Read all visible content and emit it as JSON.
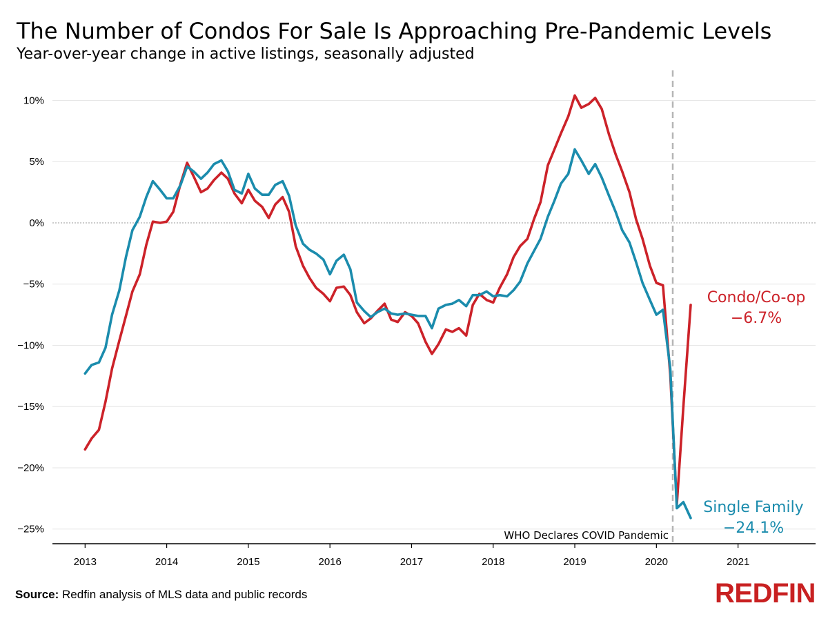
{
  "title": "The Number of Condos For Sale Is Approaching Pre-Pandemic Levels",
  "subtitle": "Year-over-year change in active listings, seasonally adjusted",
  "source_label": "Source:",
  "source_text": " Redfin analysis of MLS data and public records",
  "logo_text": "REDFIN",
  "colors": {
    "condo": "#cc2229",
    "single_family": "#1b8cad",
    "grid": "#e6e6e6",
    "annotation": "#b5b5b5"
  },
  "chart_data": {
    "type": "line",
    "xlim": [
      2012.6,
      2021.95
    ],
    "ylim": [
      -26.2,
      12.0
    ],
    "yticks": [
      10,
      5,
      0,
      -5,
      -10,
      -15,
      -20,
      -25
    ],
    "ytick_labels": [
      "10%",
      "5%",
      "0%",
      "−5%",
      "−10%",
      "−15%",
      "−20%",
      "−25%"
    ],
    "xticks": [
      2013,
      2014,
      2015,
      2016,
      2017,
      2018,
      2019,
      2020,
      2021
    ],
    "xtick_labels": [
      "2013",
      "2014",
      "2015",
      "2016",
      "2017",
      "2018",
      "2019",
      "2020",
      "2021"
    ],
    "grid": true,
    "annotation": {
      "x": 2020.2,
      "label": "WHO Declares COVID Pandemic"
    },
    "series": [
      {
        "name": "Condo/Co-op",
        "end_label": "−6.7%",
        "color": "#cc2229",
        "points": [
          [
            2013.0,
            -18.5
          ],
          [
            2013.08,
            -17.6
          ],
          [
            2013.17,
            -16.9
          ],
          [
            2013.25,
            -14.6
          ],
          [
            2013.33,
            -11.9
          ],
          [
            2013.42,
            -9.6
          ],
          [
            2013.5,
            -7.6
          ],
          [
            2013.58,
            -5.6
          ],
          [
            2013.67,
            -4.2
          ],
          [
            2013.75,
            -1.8
          ],
          [
            2013.83,
            0.1
          ],
          [
            2013.92,
            0.0
          ],
          [
            2014.0,
            0.1
          ],
          [
            2014.08,
            0.9
          ],
          [
            2014.17,
            3.2
          ],
          [
            2014.25,
            4.9
          ],
          [
            2014.33,
            3.8
          ],
          [
            2014.42,
            2.5
          ],
          [
            2014.5,
            2.8
          ],
          [
            2014.58,
            3.5
          ],
          [
            2014.67,
            4.1
          ],
          [
            2014.75,
            3.6
          ],
          [
            2014.83,
            2.4
          ],
          [
            2014.92,
            1.6
          ],
          [
            2015.0,
            2.7
          ],
          [
            2015.08,
            1.8
          ],
          [
            2015.17,
            1.3
          ],
          [
            2015.25,
            0.4
          ],
          [
            2015.33,
            1.5
          ],
          [
            2015.42,
            2.1
          ],
          [
            2015.5,
            0.9
          ],
          [
            2015.58,
            -1.9
          ],
          [
            2015.67,
            -3.5
          ],
          [
            2015.75,
            -4.5
          ],
          [
            2015.83,
            -5.3
          ],
          [
            2015.92,
            -5.8
          ],
          [
            2016.0,
            -6.4
          ],
          [
            2016.08,
            -5.3
          ],
          [
            2016.17,
            -5.2
          ],
          [
            2016.25,
            -5.9
          ],
          [
            2016.33,
            -7.3
          ],
          [
            2016.42,
            -8.2
          ],
          [
            2016.5,
            -7.8
          ],
          [
            2016.58,
            -7.2
          ],
          [
            2016.67,
            -6.6
          ],
          [
            2016.75,
            -7.9
          ],
          [
            2016.83,
            -8.1
          ],
          [
            2016.92,
            -7.3
          ],
          [
            2017.0,
            -7.6
          ],
          [
            2017.08,
            -8.2
          ],
          [
            2017.17,
            -9.7
          ],
          [
            2017.25,
            -10.7
          ],
          [
            2017.33,
            -9.9
          ],
          [
            2017.42,
            -8.7
          ],
          [
            2017.5,
            -8.9
          ],
          [
            2017.58,
            -8.6
          ],
          [
            2017.67,
            -9.2
          ],
          [
            2017.75,
            -6.7
          ],
          [
            2017.83,
            -5.8
          ],
          [
            2017.92,
            -6.3
          ],
          [
            2018.0,
            -6.5
          ],
          [
            2018.08,
            -5.3
          ],
          [
            2018.17,
            -4.2
          ],
          [
            2018.25,
            -2.8
          ],
          [
            2018.33,
            -1.9
          ],
          [
            2018.42,
            -1.3
          ],
          [
            2018.5,
            0.3
          ],
          [
            2018.58,
            1.7
          ],
          [
            2018.67,
            4.7
          ],
          [
            2018.75,
            6.0
          ],
          [
            2018.83,
            7.3
          ],
          [
            2018.92,
            8.7
          ],
          [
            2019.0,
            10.4
          ],
          [
            2019.08,
            9.4
          ],
          [
            2019.17,
            9.7
          ],
          [
            2019.25,
            10.2
          ],
          [
            2019.33,
            9.3
          ],
          [
            2019.42,
            7.2
          ],
          [
            2019.5,
            5.6
          ],
          [
            2019.58,
            4.2
          ],
          [
            2019.67,
            2.5
          ],
          [
            2019.75,
            0.3
          ],
          [
            2019.83,
            -1.3
          ],
          [
            2019.92,
            -3.5
          ],
          [
            2020.0,
            -4.9
          ],
          [
            2020.08,
            -5.1
          ],
          [
            2020.17,
            -12.4
          ],
          [
            2020.25,
            -23.0
          ],
          [
            2020.33,
            -15.0
          ],
          [
            2020.42,
            -6.7
          ]
        ]
      },
      {
        "name": "Single Family",
        "end_label": "−24.1%",
        "color": "#1b8cad",
        "points": [
          [
            2013.0,
            -12.3
          ],
          [
            2013.08,
            -11.6
          ],
          [
            2013.17,
            -11.4
          ],
          [
            2013.25,
            -10.2
          ],
          [
            2013.33,
            -7.5
          ],
          [
            2013.42,
            -5.5
          ],
          [
            2013.5,
            -2.8
          ],
          [
            2013.58,
            -0.6
          ],
          [
            2013.67,
            0.5
          ],
          [
            2013.75,
            2.1
          ],
          [
            2013.83,
            3.4
          ],
          [
            2013.92,
            2.7
          ],
          [
            2014.0,
            2.0
          ],
          [
            2014.08,
            2.0
          ],
          [
            2014.17,
            3.1
          ],
          [
            2014.25,
            4.6
          ],
          [
            2014.33,
            4.2
          ],
          [
            2014.42,
            3.6
          ],
          [
            2014.5,
            4.1
          ],
          [
            2014.58,
            4.8
          ],
          [
            2014.67,
            5.1
          ],
          [
            2014.75,
            4.2
          ],
          [
            2014.83,
            2.7
          ],
          [
            2014.92,
            2.4
          ],
          [
            2015.0,
            4.0
          ],
          [
            2015.08,
            2.8
          ],
          [
            2015.17,
            2.3
          ],
          [
            2015.25,
            2.3
          ],
          [
            2015.33,
            3.1
          ],
          [
            2015.42,
            3.4
          ],
          [
            2015.5,
            2.2
          ],
          [
            2015.58,
            -0.2
          ],
          [
            2015.67,
            -1.7
          ],
          [
            2015.75,
            -2.2
          ],
          [
            2015.83,
            -2.5
          ],
          [
            2015.92,
            -3.0
          ],
          [
            2016.0,
            -4.2
          ],
          [
            2016.08,
            -3.1
          ],
          [
            2016.17,
            -2.6
          ],
          [
            2016.25,
            -3.8
          ],
          [
            2016.33,
            -6.5
          ],
          [
            2016.42,
            -7.2
          ],
          [
            2016.5,
            -7.7
          ],
          [
            2016.58,
            -7.3
          ],
          [
            2016.67,
            -7.0
          ],
          [
            2016.75,
            -7.4
          ],
          [
            2016.83,
            -7.5
          ],
          [
            2016.92,
            -7.4
          ],
          [
            2017.0,
            -7.5
          ],
          [
            2017.08,
            -7.6
          ],
          [
            2017.17,
            -7.6
          ],
          [
            2017.25,
            -8.6
          ],
          [
            2017.33,
            -7.0
          ],
          [
            2017.42,
            -6.7
          ],
          [
            2017.5,
            -6.6
          ],
          [
            2017.58,
            -6.3
          ],
          [
            2017.67,
            -6.8
          ],
          [
            2017.75,
            -5.9
          ],
          [
            2017.83,
            -5.9
          ],
          [
            2017.92,
            -5.6
          ],
          [
            2018.0,
            -6.0
          ],
          [
            2018.08,
            -5.9
          ],
          [
            2018.17,
            -6.0
          ],
          [
            2018.25,
            -5.5
          ],
          [
            2018.33,
            -4.8
          ],
          [
            2018.42,
            -3.3
          ],
          [
            2018.5,
            -2.3
          ],
          [
            2018.58,
            -1.3
          ],
          [
            2018.67,
            0.5
          ],
          [
            2018.75,
            1.8
          ],
          [
            2018.83,
            3.2
          ],
          [
            2018.92,
            4.0
          ],
          [
            2019.0,
            6.0
          ],
          [
            2019.08,
            5.1
          ],
          [
            2019.17,
            4.0
          ],
          [
            2019.25,
            4.8
          ],
          [
            2019.33,
            3.7
          ],
          [
            2019.42,
            2.2
          ],
          [
            2019.5,
            0.9
          ],
          [
            2019.58,
            -0.6
          ],
          [
            2019.67,
            -1.6
          ],
          [
            2019.75,
            -3.2
          ],
          [
            2019.83,
            -4.9
          ],
          [
            2019.92,
            -6.3
          ],
          [
            2020.0,
            -7.5
          ],
          [
            2020.08,
            -7.1
          ],
          [
            2020.17,
            -11.9
          ],
          [
            2020.25,
            -23.3
          ],
          [
            2020.33,
            -22.8
          ],
          [
            2020.42,
            -24.1
          ]
        ]
      }
    ]
  }
}
